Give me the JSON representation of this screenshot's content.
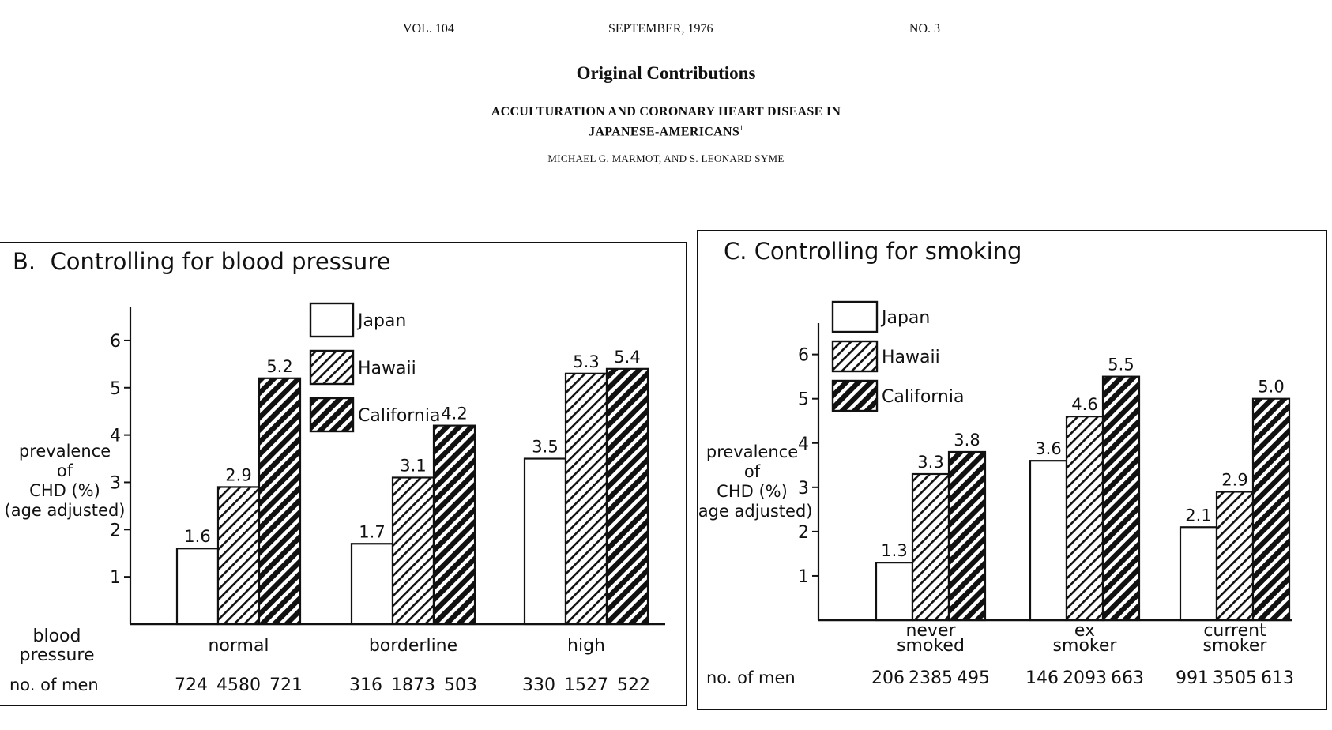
{
  "header": {
    "volume": "VOL. 104",
    "date": "SEPTEMBER, 1976",
    "number": "NO. 3",
    "section": "Original Contributions",
    "title_line1": "ACCULTURATION AND CORONARY HEART DISEASE IN",
    "title_line2": "JAPANESE-AMERICANS",
    "title_footnote": "1",
    "authors": "MICHAEL G. MARMOT, AND S. LEONARD SYME"
  },
  "colors": {
    "ink": "#111111",
    "paper": "#ffffff"
  },
  "chart_data": [
    {
      "type": "bar",
      "panel_letter": "B.",
      "title": "Controlling for blood pressure",
      "ylabel": [
        "prevalence",
        "of",
        "CHD (%)",
        "(age adjusted)"
      ],
      "xlabel": [
        "blood",
        "pressure"
      ],
      "count_label": "no. of men",
      "categories": [
        [
          "normal"
        ],
        [
          "borderline"
        ],
        [
          "high"
        ]
      ],
      "ylim": [
        0,
        6.6
      ],
      "yticks": [
        1,
        2,
        3,
        4,
        5,
        6
      ],
      "legend_position": "top-center",
      "series": [
        {
          "name": "Japan",
          "fill": "white",
          "values": [
            1.6,
            1.7,
            3.5
          ],
          "labels": [
            "1.6",
            "1.7",
            "3.5"
          ],
          "n": [
            "724",
            "316",
            "330"
          ]
        },
        {
          "name": "Hawaii",
          "fill": "light-hatch",
          "values": [
            2.9,
            3.1,
            5.3
          ],
          "labels": [
            "2.9",
            "3.1",
            "5.3"
          ],
          "n": [
            "4580",
            "1873",
            "1527"
          ]
        },
        {
          "name": "California",
          "fill": "heavy-hatch",
          "values": [
            5.2,
            4.2,
            5.4
          ],
          "labels": [
            "5.2",
            "4.2",
            "5.4"
          ],
          "n": [
            "721",
            "503",
            "522"
          ]
        }
      ]
    },
    {
      "type": "bar",
      "panel_letter": "C.",
      "title": "Controlling for smoking",
      "ylabel": [
        "prevalence",
        "of",
        "CHD (%)",
        "(age adjusted)"
      ],
      "xlabel": [],
      "count_label": "no. of men",
      "categories": [
        [
          "never",
          "smoked"
        ],
        [
          "ex",
          "smoker"
        ],
        [
          "current",
          "smoker"
        ]
      ],
      "ylim": [
        0,
        6.6
      ],
      "yticks": [
        1,
        2,
        3,
        4,
        5,
        6
      ],
      "legend_position": "top-left",
      "series": [
        {
          "name": "Japan",
          "fill": "white",
          "values": [
            1.3,
            3.6,
            2.1
          ],
          "labels": [
            "1.3",
            "3.6",
            "2.1"
          ],
          "n": [
            "206",
            "146",
            "991"
          ]
        },
        {
          "name": "Hawaii",
          "fill": "light-hatch",
          "values": [
            3.3,
            4.6,
            2.9
          ],
          "labels": [
            "3.3",
            "4.6",
            "2.9"
          ],
          "n": [
            "2385",
            "2093",
            "3505"
          ]
        },
        {
          "name": "California",
          "fill": "heavy-hatch",
          "values": [
            3.8,
            5.5,
            5.0
          ],
          "labels": [
            "3.8",
            "5.5",
            "5.0"
          ],
          "n": [
            "495",
            "663",
            "613"
          ]
        }
      ]
    }
  ]
}
